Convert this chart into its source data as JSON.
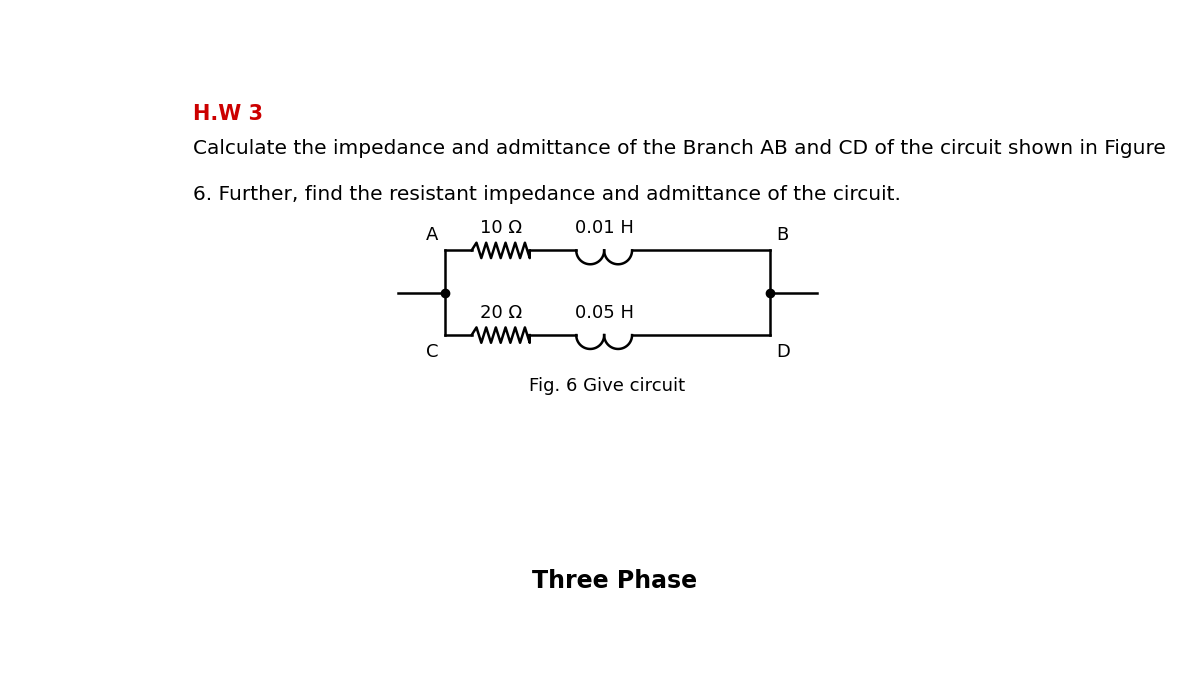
{
  "title": "H.W 3",
  "title_color": "#cc0000",
  "line1": "Calculate the impedance and admittance of the Branch AB and CD of the circuit shown in Figure",
  "line2": "6. Further, find the resistant impedance and admittance of the circuit.",
  "fig_caption": "Fig. 6 Give circuit",
  "bottom_text": "Three Phase",
  "resistor_AB_label": "10 Ω",
  "inductor_AB_label": "0.01 H",
  "resistor_CD_label": "20 Ω",
  "inductor_CD_label": "0.05 H",
  "node_A": "A",
  "node_B": "B",
  "node_C": "C",
  "node_D": "D",
  "bg_color": "#ffffff",
  "text_color": "#000000",
  "circuit_color": "#000000",
  "font_size_title": 15,
  "font_size_body": 14.5,
  "font_size_circuit_label": 13,
  "font_size_caption": 13
}
